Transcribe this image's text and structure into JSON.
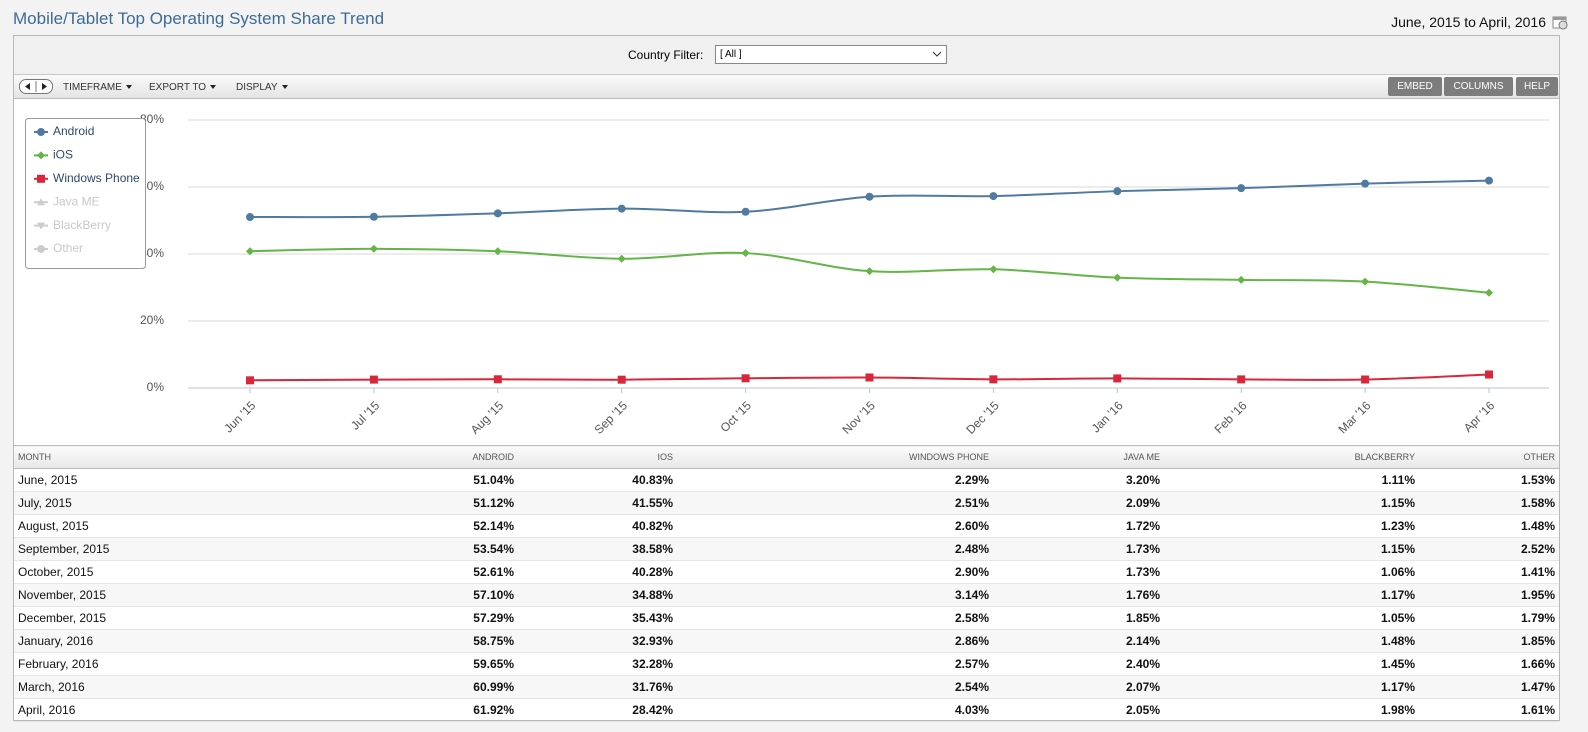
{
  "header": {
    "title": "Mobile/Tablet Top Operating System Share Trend",
    "date_range": "June, 2015 to April, 2016"
  },
  "filter": {
    "label": "Country Filter:",
    "value": "[ All ]"
  },
  "toolbar": {
    "menus": [
      "TIMEFRAME",
      "EXPORT TO",
      "DISPLAY"
    ],
    "buttons": [
      "EMBED",
      "COLUMNS",
      "HELP"
    ]
  },
  "chart_data": {
    "type": "line",
    "categories": [
      "Jun '15",
      "Jul '15",
      "Aug '15",
      "Sep '15",
      "Oct '15",
      "Nov '15",
      "Dec '15",
      "Jan '16",
      "Feb '16",
      "Mar '16",
      "Apr '16"
    ],
    "series": [
      {
        "name": "Android",
        "color": "#4f7aa2",
        "marker": "circle",
        "values": [
          51.04,
          51.12,
          52.14,
          53.54,
          52.61,
          57.1,
          57.29,
          58.75,
          59.65,
          60.99,
          61.92
        ]
      },
      {
        "name": "iOS",
        "color": "#62b546",
        "marker": "diamond",
        "values": [
          40.83,
          41.55,
          40.82,
          38.58,
          40.28,
          34.88,
          35.43,
          32.93,
          32.28,
          31.76,
          28.42
        ]
      },
      {
        "name": "Windows Phone",
        "color": "#d9263b",
        "marker": "square",
        "values": [
          2.29,
          2.51,
          2.6,
          2.48,
          2.9,
          3.14,
          2.58,
          2.86,
          2.57,
          2.54,
          4.03
        ]
      },
      {
        "name": "Java ME",
        "color": "#cccccc",
        "marker": "triangle",
        "hidden": true
      },
      {
        "name": "BlackBerry",
        "color": "#cccccc",
        "marker": "triangle-down",
        "hidden": true
      },
      {
        "name": "Other",
        "color": "#cccccc",
        "marker": "circle",
        "hidden": true
      }
    ],
    "ylim": [
      0,
      80
    ],
    "yticks": [
      {
        "value": 0,
        "label": "0%"
      },
      {
        "value": 20,
        "label": "20%"
      },
      {
        "value": 40,
        "label": "40%"
      },
      {
        "value": 60,
        "label": "60%"
      },
      {
        "value": 80,
        "label": "80%"
      }
    ],
    "grid": true,
    "legend": "left"
  },
  "table": {
    "columns": [
      "MONTH",
      "ANDROID",
      "IOS",
      "WINDOWS PHONE",
      "JAVA ME",
      "BLACKBERRY",
      "OTHER"
    ],
    "rows": [
      [
        "June, 2015",
        "51.04%",
        "40.83%",
        "2.29%",
        "3.20%",
        "1.11%",
        "1.53%"
      ],
      [
        "July, 2015",
        "51.12%",
        "41.55%",
        "2.51%",
        "2.09%",
        "1.15%",
        "1.58%"
      ],
      [
        "August, 2015",
        "52.14%",
        "40.82%",
        "2.60%",
        "1.72%",
        "1.23%",
        "1.48%"
      ],
      [
        "September, 2015",
        "53.54%",
        "38.58%",
        "2.48%",
        "1.73%",
        "1.15%",
        "2.52%"
      ],
      [
        "October, 2015",
        "52.61%",
        "40.28%",
        "2.90%",
        "1.73%",
        "1.06%",
        "1.41%"
      ],
      [
        "November, 2015",
        "57.10%",
        "34.88%",
        "3.14%",
        "1.76%",
        "1.17%",
        "1.95%"
      ],
      [
        "December, 2015",
        "57.29%",
        "35.43%",
        "2.58%",
        "1.85%",
        "1.05%",
        "1.79%"
      ],
      [
        "January, 2016",
        "58.75%",
        "32.93%",
        "2.86%",
        "2.14%",
        "1.48%",
        "1.85%"
      ],
      [
        "February, 2016",
        "59.65%",
        "32.28%",
        "2.57%",
        "2.40%",
        "1.45%",
        "1.66%"
      ],
      [
        "March, 2016",
        "60.99%",
        "31.76%",
        "2.54%",
        "2.07%",
        "1.17%",
        "1.47%"
      ],
      [
        "April, 2016",
        "61.92%",
        "28.42%",
        "4.03%",
        "2.05%",
        "1.98%",
        "1.61%"
      ]
    ]
  }
}
